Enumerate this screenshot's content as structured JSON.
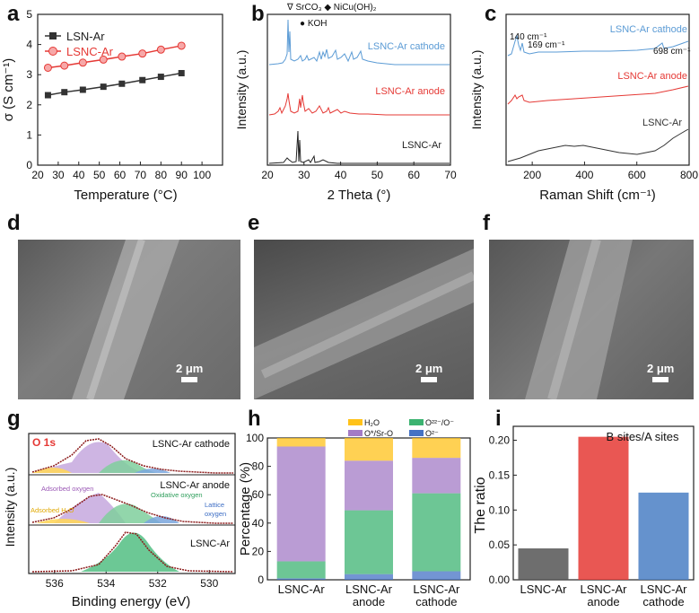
{
  "panel_labels": [
    "a",
    "b",
    "c",
    "d",
    "e",
    "f",
    "g",
    "h",
    "i"
  ],
  "panel_a": {
    "xlabel": "Temperature (°C)",
    "ylabel": "σ (S cm⁻¹)",
    "xticks": [
      "20",
      "30",
      "40",
      "50",
      "60",
      "70",
      "80",
      "90",
      "100"
    ],
    "yticks": [
      "0",
      "1",
      "2",
      "3",
      "4",
      "5"
    ],
    "legend": [
      {
        "name": "LSN-Ar",
        "color": "#333333"
      },
      {
        "name": "LSNC-Ar",
        "color": "#e53935"
      }
    ]
  },
  "panel_b": {
    "xlabel": "2 Theta (°)",
    "ylabel": "Intensity (a.u.)",
    "xticks": [
      "20",
      "30",
      "40",
      "50",
      "60",
      "70"
    ],
    "legend_line1": "∇ SrCO₃  ◆ NiCu(OH)₂",
    "legend_line2": "●  KOH",
    "curve_labels": [
      "LSNC-Ar cathode",
      "LSNC-Ar anode",
      "LSNC-Ar"
    ],
    "curve_colors": [
      "#5b9bd5",
      "#e53935",
      "#222222"
    ]
  },
  "panel_c": {
    "xlabel": "Raman Shift (cm⁻¹)",
    "ylabel": "Intensity (a.u.)",
    "xticks": [
      "200",
      "400",
      "600",
      "800"
    ],
    "curve_labels": [
      "LSNC-Ar cathode",
      "LSNC-Ar anode",
      "LSNC-Ar"
    ],
    "curve_colors": [
      "#5b9bd5",
      "#e53935",
      "#333333"
    ],
    "peak_labels": [
      "140 cm⁻¹",
      "169 cm⁻¹",
      "698 cm⁻¹"
    ]
  },
  "sem": {
    "scale": [
      "2 μm",
      "2 μm",
      "2 μm"
    ]
  },
  "panel_g": {
    "xlabel": "Binding energy (eV)",
    "ylabel": "Intensity (a.u.)",
    "xticks": [
      "536",
      "534",
      "532",
      "530"
    ],
    "title": "O 1s",
    "curve_labels": [
      "LSNC-Ar cathode",
      "LSNC-Ar anode",
      "LSNC-Ar"
    ],
    "component_labels": [
      "Adsorbed oxygen",
      "Oxidative oxygen",
      "Adsorbed H₂O",
      "Lattice",
      "oxygen"
    ]
  },
  "chart_data": [
    {
      "type": "line",
      "xlabel": "Temperature (°C)",
      "ylabel": "σ (S cm⁻¹)",
      "xlim": [
        20,
        110
      ],
      "ylim": [
        0,
        5
      ],
      "x": [
        25,
        33,
        42,
        52,
        61,
        71,
        80,
        90
      ],
      "series": [
        {
          "name": "LSN-Ar",
          "values": [
            2.32,
            2.42,
            2.5,
            2.6,
            2.7,
            2.82,
            2.93,
            3.05
          ]
        },
        {
          "name": "LSNC-Ar",
          "values": [
            3.23,
            3.3,
            3.4,
            3.5,
            3.6,
            3.7,
            3.83,
            3.96
          ]
        }
      ]
    },
    {
      "type": "bar",
      "xlabel": "",
      "ylabel": "Percentage (%)",
      "ylim": [
        0,
        100
      ],
      "yticks": [
        "0",
        "20",
        "40",
        "60",
        "80",
        "100"
      ],
      "categories": [
        "LSNC-Ar",
        "LSNC-Ar\nanode",
        "LSNC-Ar\ncathode"
      ],
      "legend": [
        "H₂O",
        "O²²⁻/O⁻",
        "O*/Sr-O",
        "O²⁻"
      ],
      "series": [
        {
          "name": "O²⁻",
          "color": "#4472c4",
          "values": [
            1,
            4,
            6
          ]
        },
        {
          "name": "O²²⁻/O⁻",
          "color": "#3cb371",
          "values": [
            12,
            45,
            55
          ]
        },
        {
          "name": "O*/Sr-O",
          "color": "#a37bc6",
          "values": [
            81,
            35,
            25
          ]
        },
        {
          "name": "H₂O",
          "color": "#ffc21a",
          "values": [
            6,
            16,
            14
          ]
        }
      ]
    },
    {
      "type": "bar",
      "title": "B sites/A sites",
      "xlabel": "",
      "ylabel": "The ratio",
      "ylim": [
        0,
        0.22
      ],
      "yticks": [
        "0.00",
        "0.05",
        "0.10",
        "0.15",
        "0.20"
      ],
      "categories": [
        "LSNC-Ar",
        "LSNC-Ar\nanode",
        "LSNC-Ar\ncathode"
      ],
      "colors": [
        "#555555",
        "#e53935",
        "#4a7fc4"
      ],
      "values": [
        0.045,
        0.205,
        0.125
      ]
    }
  ]
}
